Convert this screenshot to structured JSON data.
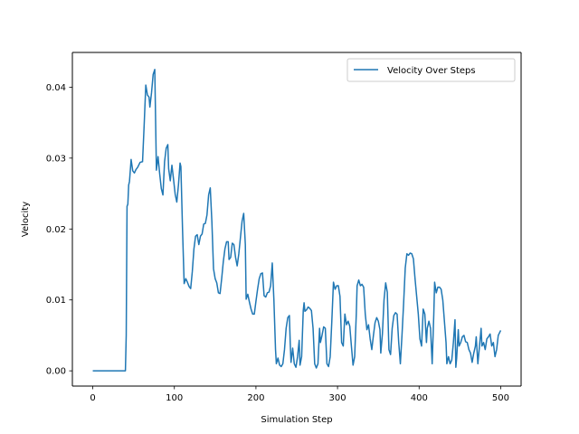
{
  "chart_data": {
    "type": "line",
    "title": "",
    "xlabel": "Simulation Step",
    "ylabel": "Velocity",
    "xlim": [
      -25,
      525
    ],
    "ylim": [
      -0.00215,
      0.0449
    ],
    "xticks": [
      0,
      100,
      200,
      300,
      400,
      500
    ],
    "xtick_labels": [
      "0",
      "100",
      "200",
      "300",
      "400",
      "500"
    ],
    "yticks": [
      0.0,
      0.01,
      0.02,
      0.03,
      0.04
    ],
    "ytick_labels": [
      "0.00",
      "0.01",
      "0.02",
      "0.03",
      "0.04"
    ],
    "grid": false,
    "legend_position": "top-right",
    "series": [
      {
        "name": "Velocity Over Steps",
        "color": "#1f77b4",
        "points": [
          [
            0,
            0.0
          ],
          [
            10,
            0.0
          ],
          [
            20,
            0.0
          ],
          [
            30,
            0.0
          ],
          [
            40,
            0.0
          ],
          [
            41,
            0.005
          ],
          [
            42,
            0.0232
          ],
          [
            43,
            0.0235
          ],
          [
            44,
            0.0262
          ],
          [
            45,
            0.0267
          ],
          [
            47,
            0.0298
          ],
          [
            49,
            0.0282
          ],
          [
            51,
            0.0279
          ],
          [
            53,
            0.0284
          ],
          [
            55,
            0.0287
          ],
          [
            58,
            0.0294
          ],
          [
            61,
            0.0295
          ],
          [
            63,
            0.0347
          ],
          [
            65,
            0.0403
          ],
          [
            67,
            0.0389
          ],
          [
            69,
            0.0386
          ],
          [
            70,
            0.0372
          ],
          [
            72,
            0.0392
          ],
          [
            74,
            0.0418
          ],
          [
            76,
            0.0425
          ],
          [
            78,
            0.0283
          ],
          [
            80,
            0.0302
          ],
          [
            82,
            0.0278
          ],
          [
            84,
            0.0257
          ],
          [
            86,
            0.0248
          ],
          [
            88,
            0.0295
          ],
          [
            90,
            0.0314
          ],
          [
            92,
            0.0319
          ],
          [
            93,
            0.0285
          ],
          [
            95,
            0.0268
          ],
          [
            97,
            0.029
          ],
          [
            99,
            0.027
          ],
          [
            101,
            0.0249
          ],
          [
            103,
            0.0238
          ],
          [
            105,
            0.0262
          ],
          [
            107,
            0.0293
          ],
          [
            108,
            0.0288
          ],
          [
            110,
            0.02
          ],
          [
            112,
            0.0123
          ],
          [
            114,
            0.013
          ],
          [
            116,
            0.0125
          ],
          [
            118,
            0.0119
          ],
          [
            120,
            0.0116
          ],
          [
            122,
            0.014
          ],
          [
            124,
            0.0172
          ],
          [
            126,
            0.019
          ],
          [
            128,
            0.0192
          ],
          [
            130,
            0.0178
          ],
          [
            132,
            0.019
          ],
          [
            134,
            0.0193
          ],
          [
            136,
            0.0207
          ],
          [
            138,
            0.0208
          ],
          [
            140,
            0.022
          ],
          [
            142,
            0.0248
          ],
          [
            144,
            0.0258
          ],
          [
            146,
            0.021
          ],
          [
            148,
            0.0144
          ],
          [
            150,
            0.013
          ],
          [
            152,
            0.0124
          ],
          [
            154,
            0.011
          ],
          [
            156,
            0.0109
          ],
          [
            158,
            0.013
          ],
          [
            160,
            0.0154
          ],
          [
            162,
            0.0172
          ],
          [
            164,
            0.0182
          ],
          [
            166,
            0.0182
          ],
          [
            167,
            0.0157
          ],
          [
            169,
            0.016
          ],
          [
            171,
            0.018
          ],
          [
            173,
            0.0178
          ],
          [
            175,
            0.016
          ],
          [
            177,
            0.0148
          ],
          [
            179,
            0.0165
          ],
          [
            181,
            0.0188
          ],
          [
            183,
            0.0211
          ],
          [
            185,
            0.0222
          ],
          [
            187,
            0.0178
          ],
          [
            188,
            0.0101
          ],
          [
            190,
            0.0108
          ],
          [
            192,
            0.0097
          ],
          [
            194,
            0.0087
          ],
          [
            196,
            0.008
          ],
          [
            198,
            0.008
          ],
          [
            200,
            0.0098
          ],
          [
            202,
            0.0115
          ],
          [
            204,
            0.013
          ],
          [
            206,
            0.0137
          ],
          [
            208,
            0.0138
          ],
          [
            210,
            0.0106
          ],
          [
            212,
            0.0104
          ],
          [
            214,
            0.011
          ],
          [
            216,
            0.0111
          ],
          [
            218,
            0.012
          ],
          [
            220,
            0.0152
          ],
          [
            222,
            0.01
          ],
          [
            224,
            0.003
          ],
          [
            225,
            0.001
          ],
          [
            227,
            0.0018
          ],
          [
            229,
            0.0008
          ],
          [
            231,
            0.0006
          ],
          [
            233,
            0.001
          ],
          [
            235,
            0.003
          ],
          [
            237,
            0.006
          ],
          [
            239,
            0.0075
          ],
          [
            241,
            0.0078
          ],
          [
            242,
            0.004
          ],
          [
            243,
            0.0012
          ],
          [
            245,
            0.0032
          ],
          [
            247,
            0.001
          ],
          [
            249,
            0.0005
          ],
          [
            251,
            0.002
          ],
          [
            253,
            0.0043
          ],
          [
            254,
            0.0008
          ],
          [
            256,
            0.002
          ],
          [
            258,
            0.0085
          ],
          [
            259,
            0.0096
          ],
          [
            260,
            0.0084
          ],
          [
            262,
            0.0086
          ],
          [
            264,
            0.009
          ],
          [
            266,
            0.0088
          ],
          [
            268,
            0.0085
          ],
          [
            270,
            0.006
          ],
          [
            272,
            0.001
          ],
          [
            274,
            0.0004
          ],
          [
            276,
            0.001
          ],
          [
            278,
            0.006
          ],
          [
            279,
            0.004
          ],
          [
            281,
            0.005
          ],
          [
            283,
            0.0062
          ],
          [
            285,
            0.006
          ],
          [
            287,
            0.001
          ],
          [
            289,
            0.0006
          ],
          [
            291,
            0.002
          ],
          [
            293,
            0.007
          ],
          [
            295,
            0.0125
          ],
          [
            297,
            0.0115
          ],
          [
            299,
            0.012
          ],
          [
            301,
            0.012
          ],
          [
            303,
            0.0105
          ],
          [
            305,
            0.004
          ],
          [
            307,
            0.0035
          ],
          [
            309,
            0.008
          ],
          [
            311,
            0.0065
          ],
          [
            313,
            0.007
          ],
          [
            315,
            0.0063
          ],
          [
            317,
            0.0035
          ],
          [
            319,
            0.0008
          ],
          [
            321,
            0.002
          ],
          [
            323,
            0.008
          ],
          [
            324,
            0.012
          ],
          [
            326,
            0.0128
          ],
          [
            328,
            0.012
          ],
          [
            330,
            0.0122
          ],
          [
            332,
            0.0118
          ],
          [
            334,
            0.008
          ],
          [
            336,
            0.0058
          ],
          [
            338,
            0.0065
          ],
          [
            340,
            0.0045
          ],
          [
            342,
            0.003
          ],
          [
            344,
            0.005
          ],
          [
            346,
            0.0068
          ],
          [
            348,
            0.0075
          ],
          [
            350,
            0.007
          ],
          [
            352,
            0.0058
          ],
          [
            353,
            0.0025
          ],
          [
            355,
            0.0052
          ],
          [
            357,
            0.01
          ],
          [
            359,
            0.0124
          ],
          [
            361,
            0.0111
          ],
          [
            363,
            0.003
          ],
          [
            365,
            0.0023
          ],
          [
            367,
            0.006
          ],
          [
            369,
            0.0078
          ],
          [
            371,
            0.0082
          ],
          [
            373,
            0.008
          ],
          [
            375,
            0.004
          ],
          [
            377,
            0.001
          ],
          [
            379,
            0.005
          ],
          [
            381,
            0.0095
          ],
          [
            383,
            0.0145
          ],
          [
            385,
            0.0165
          ],
          [
            387,
            0.0163
          ],
          [
            389,
            0.0166
          ],
          [
            391,
            0.0165
          ],
          [
            393,
            0.0158
          ],
          [
            395,
            0.013
          ],
          [
            397,
            0.0105
          ],
          [
            399,
            0.008
          ],
          [
            401,
            0.0045
          ],
          [
            403,
            0.0035
          ],
          [
            405,
            0.0087
          ],
          [
            407,
            0.008
          ],
          [
            409,
            0.004
          ],
          [
            410,
            0.006
          ],
          [
            412,
            0.007
          ],
          [
            414,
            0.006
          ],
          [
            416,
            0.001
          ],
          [
            418,
            0.008
          ],
          [
            419,
            0.0125
          ],
          [
            421,
            0.011
          ],
          [
            423,
            0.0118
          ],
          [
            425,
            0.0118
          ],
          [
            427,
            0.0115
          ],
          [
            429,
            0.01
          ],
          [
            431,
            0.007
          ],
          [
            433,
            0.004
          ],
          [
            434,
            0.001
          ],
          [
            436,
            0.002
          ],
          [
            438,
            0.001
          ],
          [
            440,
            0.0015
          ],
          [
            442,
            0.004
          ],
          [
            444,
            0.0072
          ],
          [
            445,
            0.0005
          ],
          [
            446,
            0.0018
          ],
          [
            448,
            0.0058
          ],
          [
            449,
            0.0035
          ],
          [
            451,
            0.004
          ],
          [
            453,
            0.0048
          ],
          [
            455,
            0.005
          ],
          [
            457,
            0.0041
          ],
          [
            459,
            0.004
          ],
          [
            461,
            0.003
          ],
          [
            463,
            0.0025
          ],
          [
            465,
            0.0012
          ],
          [
            467,
            0.0025
          ],
          [
            469,
            0.0035
          ],
          [
            470,
            0.0048
          ],
          [
            472,
            0.001
          ],
          [
            474,
            0.0035
          ],
          [
            476,
            0.006
          ],
          [
            477,
            0.0035
          ],
          [
            479,
            0.004
          ],
          [
            481,
            0.003
          ],
          [
            483,
            0.0045
          ],
          [
            485,
            0.0048
          ],
          [
            487,
            0.0052
          ],
          [
            489,
            0.0035
          ],
          [
            491,
            0.004
          ],
          [
            493,
            0.002
          ],
          [
            495,
            0.003
          ],
          [
            497,
            0.005
          ],
          [
            500,
            0.0057
          ]
        ]
      }
    ]
  }
}
